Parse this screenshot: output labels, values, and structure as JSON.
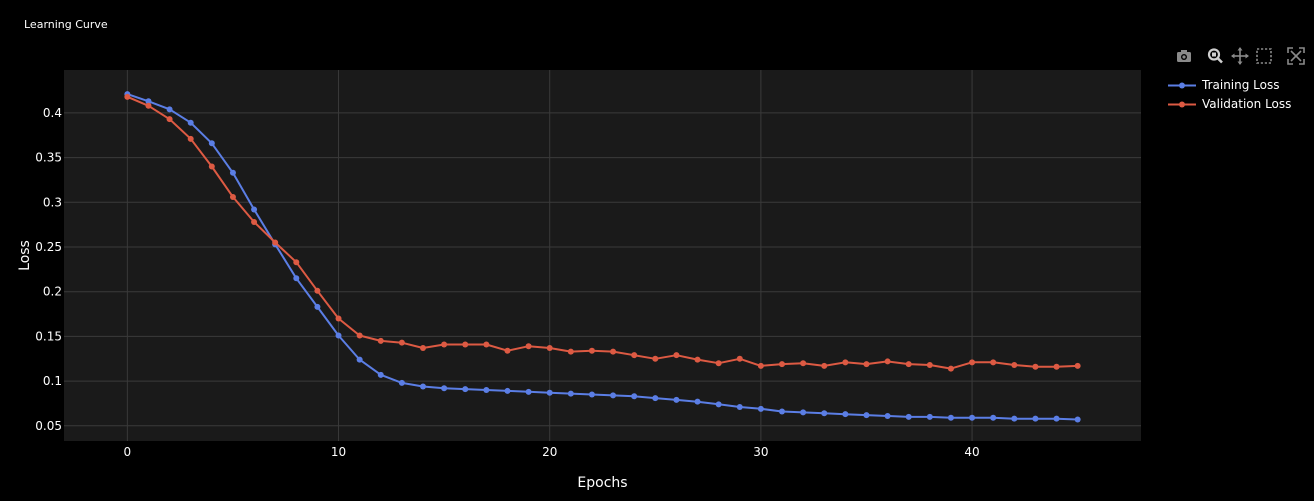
{
  "title": "Learning Curve",
  "toolbar": {
    "icons": [
      "camera-icon",
      "zoom-icon",
      "pan-icon",
      "box-select-icon",
      "autoscale-icon"
    ]
  },
  "colors": {
    "background": "#000000",
    "plot_background": "#1a1a1a",
    "grid": "#3a3a3a",
    "training": "#5b7ee5",
    "validation": "#dd5a43"
  },
  "chart_data": {
    "type": "line",
    "title": "Learning Curve",
    "xlabel": "Epochs",
    "ylabel": "Loss",
    "xlim": [
      -3,
      48
    ],
    "ylim": [
      0.033,
      0.448
    ],
    "x_ticks": [
      0,
      10,
      20,
      30,
      40
    ],
    "y_ticks": [
      0.05,
      0.1,
      0.15,
      0.2,
      0.25,
      0.3,
      0.35,
      0.4
    ],
    "y_tick_labels": [
      "0.05",
      "0.1",
      "0.15",
      "0.2",
      "0.25",
      "0.3",
      "0.35",
      "0.4"
    ],
    "grid": true,
    "legend_position": "top-right outside",
    "x": [
      0,
      1,
      2,
      3,
      4,
      5,
      6,
      7,
      8,
      9,
      10,
      11,
      12,
      13,
      14,
      15,
      16,
      17,
      18,
      19,
      20,
      21,
      22,
      23,
      24,
      25,
      26,
      27,
      28,
      29,
      30,
      31,
      32,
      33,
      34,
      35,
      36,
      37,
      38,
      39,
      40,
      41,
      42,
      43,
      44,
      45
    ],
    "series": [
      {
        "name": "Training Loss",
        "values": [
          0.421,
          0.413,
          0.404,
          0.389,
          0.366,
          0.333,
          0.292,
          0.253,
          0.215,
          0.183,
          0.151,
          0.124,
          0.107,
          0.098,
          0.094,
          0.092,
          0.091,
          0.09,
          0.089,
          0.088,
          0.087,
          0.086,
          0.085,
          0.084,
          0.083,
          0.081,
          0.079,
          0.077,
          0.074,
          0.071,
          0.069,
          0.066,
          0.065,
          0.064,
          0.063,
          0.062,
          0.061,
          0.06,
          0.06,
          0.059,
          0.059,
          0.059,
          0.058,
          0.058,
          0.058,
          0.057
        ]
      },
      {
        "name": "Validation Loss",
        "values": [
          0.418,
          0.408,
          0.393,
          0.371,
          0.34,
          0.306,
          0.278,
          0.255,
          0.233,
          0.201,
          0.17,
          0.151,
          0.145,
          0.143,
          0.137,
          0.141,
          0.141,
          0.141,
          0.134,
          0.139,
          0.137,
          0.133,
          0.134,
          0.133,
          0.129,
          0.125,
          0.129,
          0.124,
          0.12,
          0.125,
          0.117,
          0.119,
          0.12,
          0.117,
          0.121,
          0.119,
          0.122,
          0.119,
          0.118,
          0.114,
          0.121,
          0.121,
          0.118,
          0.116,
          0.116,
          0.117
        ]
      }
    ]
  }
}
